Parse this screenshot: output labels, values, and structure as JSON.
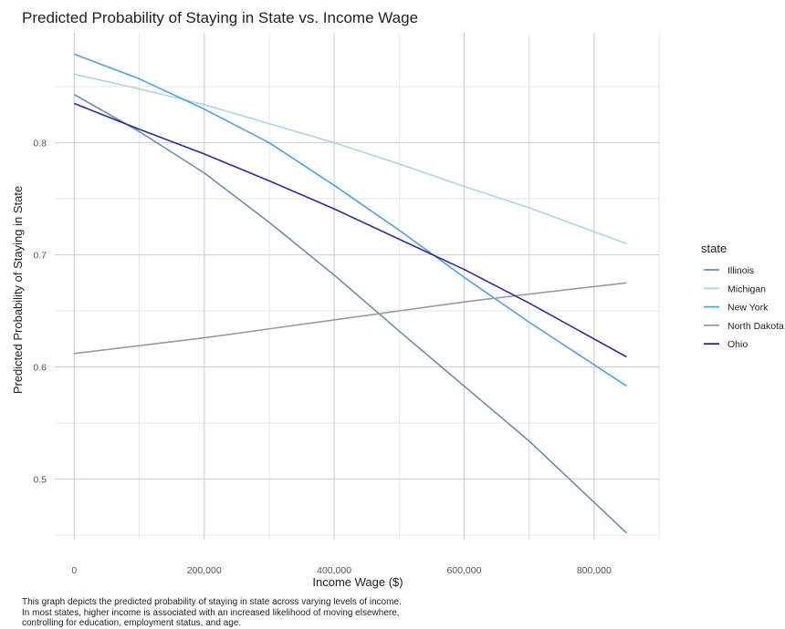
{
  "chart_data": {
    "type": "line",
    "title": "Predicted Probability of Staying in State vs. Income Wage",
    "xlabel": "Income Wage ($)",
    "ylabel": "Predicted Probability of Staying in State",
    "xlim": [
      -30000,
      900000
    ],
    "ylim": [
      0.446,
      0.898
    ],
    "x_ticks": [
      0,
      200000,
      400000,
      600000,
      800000
    ],
    "x_tick_labels": [
      "0",
      "200,000",
      "400,000",
      "600,000",
      "800,000"
    ],
    "y_ticks": [
      0.5,
      0.6,
      0.7,
      0.8
    ],
    "y_tick_labels": [
      "0.5",
      "0.6",
      "0.7",
      "0.8"
    ],
    "grid": true,
    "legend_title": "state",
    "legend_position": "right",
    "x": [
      0,
      100000,
      200000,
      300000,
      400000,
      500000,
      600000,
      700000,
      850000
    ],
    "series": [
      {
        "name": "Illinois",
        "color": "#6a8fab",
        "values": [
          0.843,
          0.81,
          0.773,
          0.729,
          0.682,
          0.632,
          0.583,
          0.534,
          0.452
        ]
      },
      {
        "name": "Michigan",
        "color": "#a9d6e0",
        "values": [
          0.861,
          0.848,
          0.834,
          0.817,
          0.8,
          0.781,
          0.761,
          0.742,
          0.71
        ]
      },
      {
        "name": "New York",
        "color": "#4aa3e8",
        "values": [
          0.879,
          0.857,
          0.83,
          0.8,
          0.762,
          0.722,
          0.68,
          0.64,
          0.583
        ]
      },
      {
        "name": "North Dakota",
        "color": "#9a9a9a",
        "values": [
          0.612,
          0.619,
          0.626,
          0.634,
          0.642,
          0.65,
          0.658,
          0.665,
          0.675
        ]
      },
      {
        "name": "Ohio",
        "color": "#2a2aa8",
        "values": [
          0.835,
          0.812,
          0.79,
          0.766,
          0.741,
          0.714,
          0.687,
          0.657,
          0.609
        ]
      }
    ]
  },
  "caption": [
    "This graph depicts the predicted probability of staying in state across varying levels of income.",
    "In most states, higher income is associated with an increased likelihood of moving elsewhere,",
    "controlling for education, employment status, and age."
  ]
}
